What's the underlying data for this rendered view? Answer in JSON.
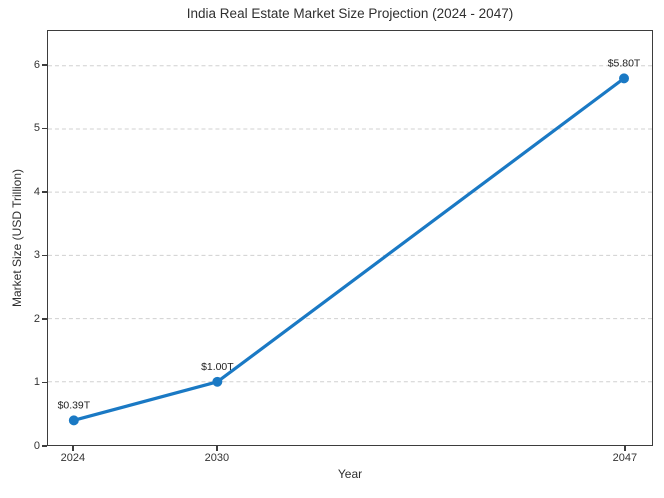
{
  "chart_data": {
    "type": "line",
    "title": "India Real Estate Market Size Projection (2024 - 2047)",
    "xlabel": "Year",
    "ylabel": "Market Size (USD Trillion)",
    "x": [
      2024,
      2030,
      2047
    ],
    "y": [
      0.39,
      1.0,
      5.8
    ],
    "point_labels": [
      "$0.39T",
      "$1.00T",
      "$5.80T"
    ],
    "xticks": [
      2024,
      2030,
      2047
    ],
    "xtick_labels": [
      "2024",
      "2030",
      "2047"
    ],
    "yticks": [
      0,
      1,
      2,
      3,
      4,
      5,
      6
    ],
    "ytick_labels": [
      "0",
      "1",
      "2",
      "3",
      "4",
      "5",
      "6"
    ],
    "xlim": [
      2022.92,
      2048.17
    ],
    "ylim": [
      0,
      6.55
    ],
    "grid": "horizontal-dashed",
    "legend": "none",
    "line_color": "#1a79c4",
    "marker": "circle",
    "grid_color": "#d0d0d0",
    "spine_color": "#3d3d3d",
    "annotation_color": "#222222"
  }
}
